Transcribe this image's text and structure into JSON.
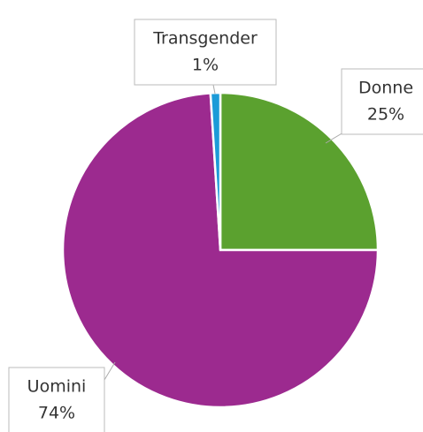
{
  "chart_data": {
    "type": "pie",
    "categories": [
      "Donne",
      "Uomini",
      "Transgender"
    ],
    "values": [
      25,
      74,
      1
    ],
    "value_labels": [
      "25%",
      "74%",
      "1%"
    ],
    "colors": [
      "#5ba12f",
      "#9c2a8f",
      "#1c9bd8"
    ]
  }
}
